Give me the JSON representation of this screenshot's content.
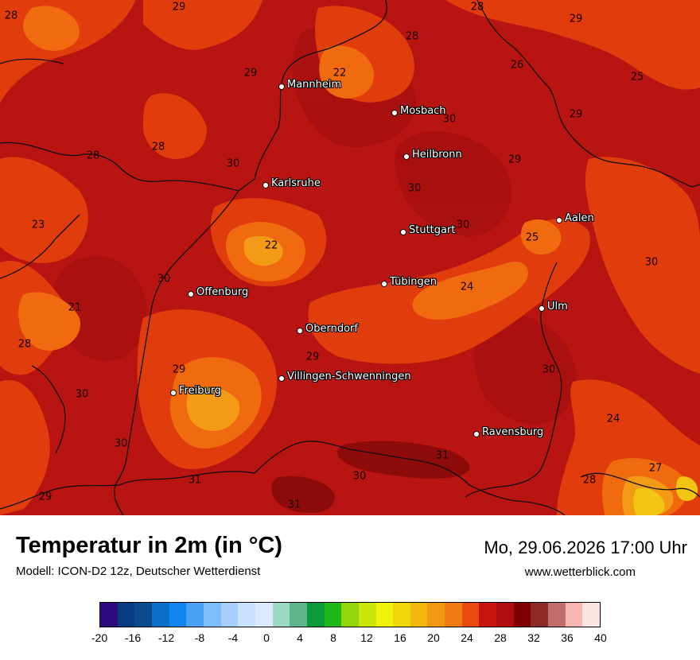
{
  "map": {
    "cities": [
      {
        "name": "Mannheim"
      },
      {
        "name": "Mosbach"
      },
      {
        "name": "Heilbronn"
      },
      {
        "name": "Karlsruhe"
      },
      {
        "name": "Stuttgart"
      },
      {
        "name": "Aalen"
      },
      {
        "name": "Tübingen"
      },
      {
        "name": "Offenburg"
      },
      {
        "name": "Ulm"
      },
      {
        "name": "Oberndorf"
      },
      {
        "name": "Villingen-Schwenningen"
      },
      {
        "name": "Freiburg"
      },
      {
        "name": "Ravensburg"
      }
    ],
    "temperature_labels": [
      "29",
      "28",
      "28",
      "29",
      "25",
      "22",
      "26",
      "29",
      "29",
      "28",
      "30",
      "28",
      "28",
      "29",
      "30",
      "23",
      "30",
      "30",
      "22",
      "25",
      "30",
      "24",
      "21",
      "28",
      "30",
      "29",
      "29",
      "30",
      "30",
      "24",
      "27",
      "31",
      "31",
      "30",
      "29",
      "31",
      "28",
      "30"
    ],
    "colors": {
      "base": "#b81412",
      "warm": "#e03c0c",
      "hot_orange": "#f06a10",
      "light_orange": "#f39a16",
      "yellow": "#f2c414",
      "dark": "#8e0b0b"
    }
  },
  "footer": {
    "title": "Temperatur in 2m (in °C)",
    "subtitle": "Modell: ICON-D2 12z, Deutscher Wetterdienst",
    "datetime": "Mo, 29.06.2026 17:00 Uhr",
    "website": "www.wetterblick.com"
  },
  "legend": {
    "colors": [
      "#2d0a7d",
      "#083a82",
      "#0b4a8e",
      "#0a6fc6",
      "#1086ee",
      "#4aa0f5",
      "#7dbdf9",
      "#a4d0fb",
      "#c8e1fc",
      "#dce9fd",
      "#9ad8c3",
      "#5db58c",
      "#0a9a3a",
      "#20b818",
      "#94d40c",
      "#c8e60a",
      "#f0f20a",
      "#f2d60c",
      "#f2b80e",
      "#f19812",
      "#ef7a12",
      "#e84a10",
      "#c8140e",
      "#b00f0f",
      "#7f0000",
      "#8c2a28",
      "#c06e6c",
      "#f8b6b0",
      "#fde2e2"
    ],
    "ticks": [
      "-20",
      "-16",
      "-12",
      "-8",
      "-4",
      "0",
      "4",
      "8",
      "12",
      "16",
      "20",
      "24",
      "28",
      "32",
      "36",
      "40"
    ]
  }
}
